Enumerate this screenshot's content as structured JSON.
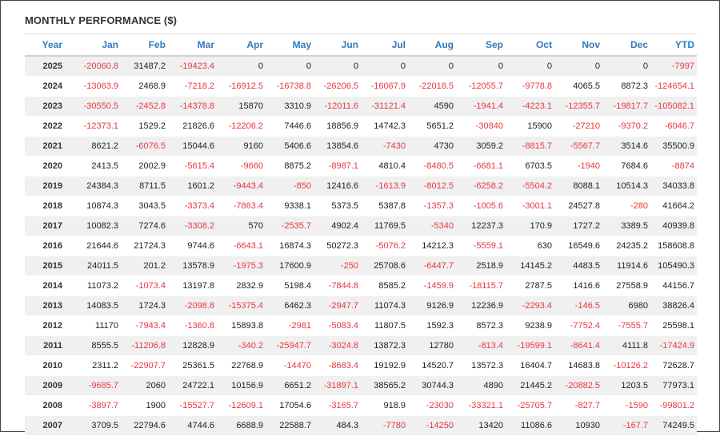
{
  "title": "MONTHLY PERFORMANCE ($)",
  "columns": [
    "Year",
    "Jan",
    "Feb",
    "Mar",
    "Apr",
    "May",
    "Jun",
    "Jul",
    "Aug",
    "Sep",
    "Oct",
    "Nov",
    "Dec",
    "YTD"
  ],
  "negative_color": "#e8383d",
  "header_color": "#2e7bbf",
  "rows": [
    [
      "2025",
      "-20060.8",
      "31487.2",
      "-19423.4",
      "0",
      "0",
      "0",
      "0",
      "0",
      "0",
      "0",
      "0",
      "0",
      "-7997"
    ],
    [
      "2024",
      "-13063.9",
      "2468.9",
      "-7218.2",
      "-16912.5",
      "-16738.8",
      "-26206.5",
      "-16067.9",
      "-22018.5",
      "-12055.7",
      "-9778.8",
      "4065.5",
      "8872.3",
      "-124654.1"
    ],
    [
      "2023",
      "-30550.5",
      "-2452.8",
      "-14378.8",
      "15870",
      "3310.9",
      "-12011.6",
      "-31121.4",
      "4590",
      "-1941.4",
      "-4223.1",
      "-12355.7",
      "-19817.7",
      "-105082.1"
    ],
    [
      "2022",
      "-12373.1",
      "1529.2",
      "21826.6",
      "-12206.2",
      "7446.6",
      "18856.9",
      "14742.3",
      "5651.2",
      "-30840",
      "15900",
      "-27210",
      "-9370.2",
      "-6046.7"
    ],
    [
      "2021",
      "8621.2",
      "-6076.5",
      "15044.6",
      "9160",
      "5406.6",
      "13854.6",
      "-7430",
      "4730",
      "3059.2",
      "-8815.7",
      "-5567.7",
      "3514.6",
      "35500.9"
    ],
    [
      "2020",
      "2413.5",
      "2002.9",
      "-5615.4",
      "-9660",
      "8875.2",
      "-8987.1",
      "4810.4",
      "-8480.5",
      "-6681.1",
      "6703.5",
      "-1940",
      "7684.6",
      "-8874"
    ],
    [
      "2019",
      "24384.3",
      "8711.5",
      "1601.2",
      "-9443.4",
      "-850",
      "12416.6",
      "-1613.9",
      "-8012.5",
      "-6258.2",
      "-5504.2",
      "8088.1",
      "10514.3",
      "34033.8"
    ],
    [
      "2018",
      "10874.3",
      "3043.5",
      "-3373.4",
      "-7863.4",
      "9338.1",
      "5373.5",
      "5387.8",
      "-1357.3",
      "-1005.6",
      "-3001.1",
      "24527.8",
      "-280",
      "41664.2"
    ],
    [
      "2017",
      "10082.3",
      "7274.6",
      "-3308.2",
      "570",
      "-2535.7",
      "4902.4",
      "11769.5",
      "-5340",
      "12237.3",
      "170.9",
      "1727.2",
      "3389.5",
      "40939.8"
    ],
    [
      "2016",
      "21644.6",
      "21724.3",
      "9744.6",
      "-6643.1",
      "16874.3",
      "50272.3",
      "-5076.2",
      "14212.3",
      "-5559.1",
      "630",
      "16549.6",
      "24235.2",
      "158608.8"
    ],
    [
      "2015",
      "24011.5",
      "201.2",
      "13578.9",
      "-1975.3",
      "17600.9",
      "-250",
      "25708.6",
      "-6447.7",
      "2518.9",
      "14145.2",
      "4483.5",
      "11914.6",
      "105490.3"
    ],
    [
      "2014",
      "11073.2",
      "-1073.4",
      "13197.8",
      "2832.9",
      "5198.4",
      "-7844.8",
      "8585.2",
      "-1459.9",
      "-18115.7",
      "2787.5",
      "1416.6",
      "27558.9",
      "44156.7"
    ],
    [
      "2013",
      "14083.5",
      "1724.3",
      "-2098.8",
      "-15375.4",
      "6462.3",
      "-2947.7",
      "11074.3",
      "9126.9",
      "12236.9",
      "-2293.4",
      "-146.5",
      "6980",
      "38826.4"
    ],
    [
      "2012",
      "11170",
      "-7943.4",
      "-1360.8",
      "15893.8",
      "-2981",
      "-5083.4",
      "11807.5",
      "1592.3",
      "8572.3",
      "9238.9",
      "-7752.4",
      "-7555.7",
      "25598.1"
    ],
    [
      "2011",
      "8555.5",
      "-11206.8",
      "12828.9",
      "-340.2",
      "-25947.7",
      "-3024.8",
      "13872.3",
      "12780",
      "-813.4",
      "-19599.1",
      "-8641.4",
      "4111.8",
      "-17424.9"
    ],
    [
      "2010",
      "2311.2",
      "-22907.7",
      "25361.5",
      "22768.9",
      "-14470",
      "-8683.4",
      "19192.9",
      "14520.7",
      "13572.3",
      "16404.7",
      "14683.8",
      "-10126.2",
      "72628.7"
    ],
    [
      "2009",
      "-9685.7",
      "2060",
      "24722.1",
      "10156.9",
      "6651.2",
      "-31897.1",
      "38565.2",
      "30744.3",
      "4890",
      "21445.2",
      "-20882.5",
      "1203.5",
      "77973.1"
    ],
    [
      "2008",
      "-3897.7",
      "1900",
      "-15527.7",
      "-12609.1",
      "17054.6",
      "-3165.7",
      "918.9",
      "-23030",
      "-33321.1",
      "-25705.7",
      "-827.7",
      "-1590",
      "-99801.2"
    ],
    [
      "2007",
      "3709.5",
      "22794.6",
      "4744.6",
      "6688.9",
      "22588.7",
      "484.3",
      "-7780",
      "-14250",
      "13420",
      "11086.6",
      "10930",
      "-167.7",
      "74249.5"
    ]
  ]
}
